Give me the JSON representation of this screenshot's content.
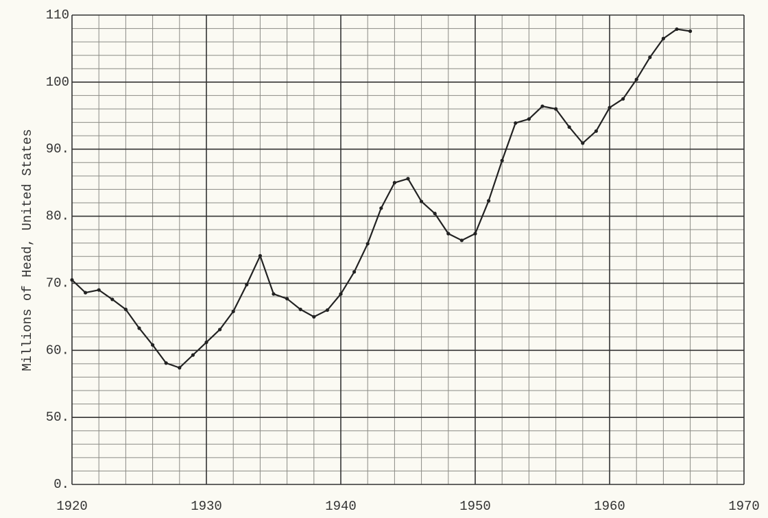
{
  "chart_data": {
    "type": "line",
    "y_label": "Millions of Head, United States",
    "x": [
      1920,
      1921,
      1922,
      1923,
      1924,
      1925,
      1926,
      1927,
      1928,
      1929,
      1930,
      1931,
      1932,
      1933,
      1934,
      1935,
      1936,
      1937,
      1938,
      1939,
      1940,
      1941,
      1942,
      1943,
      1944,
      1945,
      1946,
      1947,
      1948,
      1949,
      1950,
      1951,
      1952,
      1953,
      1954,
      1955,
      1956,
      1957,
      1958,
      1959,
      1960,
      1961,
      1962,
      1963,
      1964,
      1965,
      1966
    ],
    "series": [
      {
        "color": "#222222",
        "values": [
          70.5,
          68.6,
          69.0,
          67.6,
          66.1,
          63.3,
          60.8,
          58.1,
          57.4,
          59.3,
          61.2,
          63.1,
          65.8,
          69.8,
          74.1,
          68.4,
          67.7,
          66.1,
          65.0,
          66.0,
          68.4,
          71.7,
          75.9,
          81.2,
          85.0,
          85.6,
          82.2,
          80.4,
          77.4,
          76.4,
          77.4,
          82.3,
          88.3,
          93.9,
          94.5,
          96.4,
          96.0,
          93.3,
          90.9,
          92.7,
          96.2,
          97.5,
          100.4,
          103.7,
          106.5,
          107.9,
          107.6
        ]
      }
    ],
    "xlim": [
      1920,
      1970
    ],
    "xticks": [
      1920,
      1930,
      1940,
      1950,
      1960,
      1970
    ],
    "ylim": [
      0,
      110
    ],
    "ybreak": [
      0,
      50
    ],
    "yticks": [
      {
        "value": 0,
        "label": "0."
      },
      {
        "value": 50,
        "label": "50."
      },
      {
        "value": 60,
        "label": "60."
      },
      {
        "value": 70,
        "label": "70."
      },
      {
        "value": 80,
        "label": "80."
      },
      {
        "value": 90,
        "label": "90."
      },
      100,
      110
    ],
    "grid": true,
    "minor_grid": 5
  }
}
